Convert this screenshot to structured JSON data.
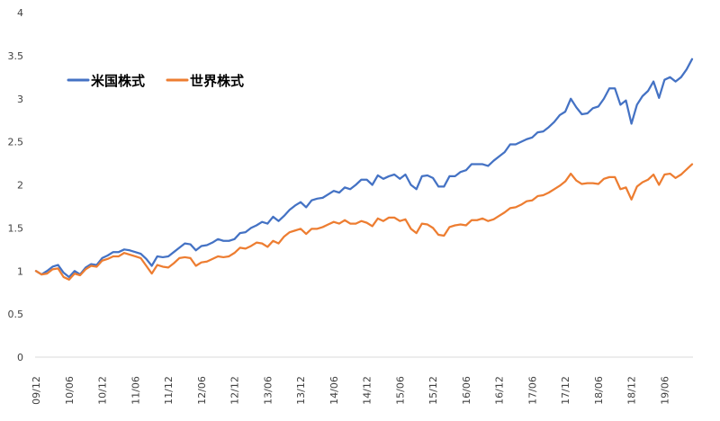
{
  "chart_data": {
    "type": "line",
    "title": "",
    "xlabel": "",
    "ylabel": "",
    "ylim": [
      0,
      4
    ],
    "yticks": [
      "0",
      "0.5",
      "1",
      "1.5",
      "2",
      "2.5",
      "3",
      "3.5",
      "4"
    ],
    "grid": false,
    "legend_position": "top-left",
    "x_tick_labels": [
      "09/12",
      "10/06",
      "10/12",
      "11/06",
      "11/12",
      "12/06",
      "12/12",
      "13/06",
      "13/12",
      "14/06",
      "14/12",
      "15/06",
      "15/12",
      "16/06",
      "16/12",
      "17/06",
      "17/12",
      "18/06",
      "18/12",
      "19/06"
    ],
    "series": [
      {
        "name": "米国株式",
        "color": "#4472C4",
        "values": [
          1.0,
          0.96,
          1.0,
          1.05,
          1.07,
          0.98,
          0.93,
          1.0,
          0.96,
          1.04,
          1.08,
          1.07,
          1.15,
          1.18,
          1.22,
          1.22,
          1.25,
          1.24,
          1.22,
          1.2,
          1.14,
          1.06,
          1.17,
          1.16,
          1.17,
          1.22,
          1.27,
          1.32,
          1.31,
          1.24,
          1.29,
          1.3,
          1.33,
          1.37,
          1.35,
          1.35,
          1.37,
          1.44,
          1.45,
          1.5,
          1.53,
          1.57,
          1.55,
          1.63,
          1.58,
          1.64,
          1.71,
          1.76,
          1.8,
          1.74,
          1.82,
          1.84,
          1.85,
          1.89,
          1.93,
          1.91,
          1.97,
          1.95,
          2.0,
          2.06,
          2.06,
          2.0,
          2.11,
          2.07,
          2.1,
          2.12,
          2.07,
          2.12,
          2.0,
          1.95,
          2.1,
          2.11,
          2.08,
          1.98,
          1.98,
          2.1,
          2.1,
          2.15,
          2.17,
          2.24,
          2.24,
          2.24,
          2.22,
          2.28,
          2.33,
          2.38,
          2.47,
          2.47,
          2.5,
          2.53,
          2.55,
          2.61,
          2.62,
          2.67,
          2.73,
          2.81,
          2.85,
          3.0,
          2.9,
          2.82,
          2.83,
          2.89,
          2.91,
          3.0,
          3.12,
          3.12,
          2.93,
          2.98,
          2.71,
          2.93,
          3.03,
          3.09,
          3.2,
          3.01,
          3.22,
          3.25,
          3.2,
          3.25,
          3.34,
          3.46
        ]
      },
      {
        "name": "世界株式",
        "color": "#ED7D31",
        "values": [
          1.0,
          0.96,
          0.97,
          1.02,
          1.03,
          0.93,
          0.9,
          0.97,
          0.95,
          1.02,
          1.06,
          1.05,
          1.12,
          1.14,
          1.17,
          1.17,
          1.21,
          1.19,
          1.17,
          1.15,
          1.06,
          0.97,
          1.07,
          1.05,
          1.04,
          1.09,
          1.15,
          1.16,
          1.15,
          1.06,
          1.1,
          1.11,
          1.14,
          1.17,
          1.16,
          1.17,
          1.21,
          1.27,
          1.26,
          1.29,
          1.33,
          1.32,
          1.28,
          1.35,
          1.32,
          1.4,
          1.45,
          1.47,
          1.49,
          1.43,
          1.49,
          1.49,
          1.51,
          1.54,
          1.57,
          1.55,
          1.59,
          1.55,
          1.55,
          1.58,
          1.56,
          1.52,
          1.61,
          1.58,
          1.62,
          1.62,
          1.58,
          1.6,
          1.49,
          1.44,
          1.55,
          1.54,
          1.5,
          1.42,
          1.41,
          1.51,
          1.53,
          1.54,
          1.53,
          1.59,
          1.59,
          1.61,
          1.58,
          1.6,
          1.64,
          1.68,
          1.73,
          1.74,
          1.77,
          1.81,
          1.82,
          1.87,
          1.88,
          1.91,
          1.95,
          1.99,
          2.04,
          2.13,
          2.05,
          2.01,
          2.02,
          2.02,
          2.01,
          2.07,
          2.09,
          2.09,
          1.95,
          1.97,
          1.83,
          1.98,
          2.03,
          2.06,
          2.12,
          2.0,
          2.12,
          2.13,
          2.08,
          2.12,
          2.18,
          2.24
        ]
      }
    ]
  }
}
